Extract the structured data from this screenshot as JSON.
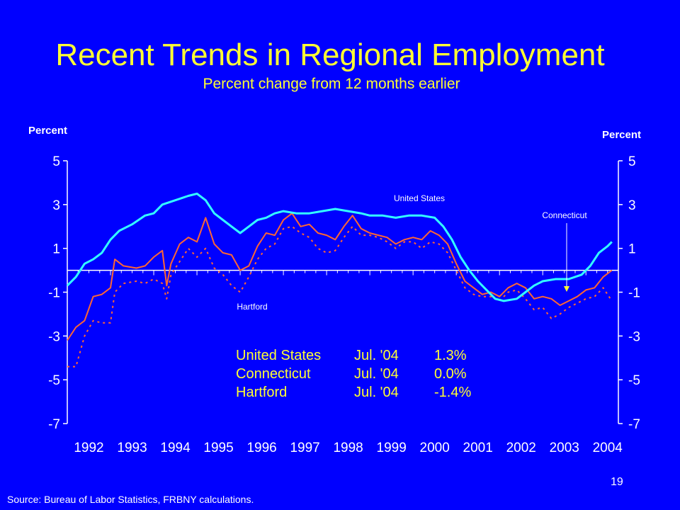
{
  "slide": {
    "title": "Recent Trends in Regional Employment",
    "subtitle": "Percent change from 12 months earlier",
    "page_number": "19",
    "source": "Source: Bureau of Labor Statistics, FRBNY calculations."
  },
  "colors": {
    "background": "#0000ff",
    "title": "#ffff33",
    "us": "#33ffff",
    "connecticut": "#ff6633",
    "hartford": "#ff6633",
    "axis": "#ffffff"
  },
  "chart_data": {
    "type": "line",
    "left_axis_title": "Percent",
    "right_axis_title": "Percent",
    "y_ticks": [
      "5",
      "3",
      "1",
      "-1",
      "-3",
      "-5",
      "-7"
    ],
    "y_tick_values": [
      5,
      3,
      1,
      -1,
      -3,
      -5,
      -7
    ],
    "x_ticks": [
      "1992",
      "1993",
      "1994",
      "1995",
      "1996",
      "1997",
      "1998",
      "1999",
      "2000",
      "2001",
      "2002",
      "2003",
      "2004"
    ],
    "ylim": [
      -7,
      5
    ],
    "xlim": [
      1992.0,
      2004.75
    ],
    "grid": false,
    "annotations": [
      {
        "text": "United States",
        "series": "United States"
      },
      {
        "text": "Connecticut",
        "series": "Connecticut",
        "arrow": true
      },
      {
        "text": "Hartford",
        "series": "Hartford"
      }
    ],
    "table": [
      {
        "name": "United States",
        "date": "Jul. '04",
        "value": "1.3%"
      },
      {
        "name": "Connecticut",
        "date": "Jul. '04",
        "value": "0.0%"
      },
      {
        "name": "Hartford",
        "date": "Jul. '04",
        "value": "-1.4%"
      }
    ],
    "series": [
      {
        "name": "United States",
        "style": "solid",
        "points": [
          [
            1992.0,
            -0.7
          ],
          [
            1992.2,
            -0.3
          ],
          [
            1992.4,
            0.3
          ],
          [
            1992.6,
            0.5
          ],
          [
            1992.8,
            0.8
          ],
          [
            1993.0,
            1.4
          ],
          [
            1993.2,
            1.8
          ],
          [
            1993.5,
            2.1
          ],
          [
            1993.8,
            2.5
          ],
          [
            1994.0,
            2.6
          ],
          [
            1994.2,
            3.0
          ],
          [
            1994.5,
            3.2
          ],
          [
            1994.8,
            3.4
          ],
          [
            1995.0,
            3.5
          ],
          [
            1995.2,
            3.2
          ],
          [
            1995.4,
            2.6
          ],
          [
            1995.6,
            2.3
          ],
          [
            1995.8,
            2.0
          ],
          [
            1996.0,
            1.7
          ],
          [
            1996.2,
            2.0
          ],
          [
            1996.4,
            2.3
          ],
          [
            1996.6,
            2.4
          ],
          [
            1996.8,
            2.6
          ],
          [
            1997.0,
            2.7
          ],
          [
            1997.3,
            2.6
          ],
          [
            1997.6,
            2.6
          ],
          [
            1997.9,
            2.7
          ],
          [
            1998.2,
            2.8
          ],
          [
            1998.5,
            2.7
          ],
          [
            1998.8,
            2.6
          ],
          [
            1999.0,
            2.5
          ],
          [
            1999.3,
            2.5
          ],
          [
            1999.6,
            2.4
          ],
          [
            1999.9,
            2.5
          ],
          [
            2000.2,
            2.5
          ],
          [
            2000.5,
            2.4
          ],
          [
            2000.7,
            2.0
          ],
          [
            2000.9,
            1.4
          ],
          [
            2001.1,
            0.6
          ],
          [
            2001.3,
            0.0
          ],
          [
            2001.5,
            -0.5
          ],
          [
            2001.7,
            -0.9
          ],
          [
            2001.9,
            -1.3
          ],
          [
            2002.1,
            -1.4
          ],
          [
            2002.4,
            -1.3
          ],
          [
            2002.6,
            -1.0
          ],
          [
            2002.8,
            -0.7
          ],
          [
            2003.0,
            -0.5
          ],
          [
            2003.3,
            -0.4
          ],
          [
            2003.6,
            -0.4
          ],
          [
            2003.9,
            -0.2
          ],
          [
            2004.1,
            0.2
          ],
          [
            2004.3,
            0.8
          ],
          [
            2004.5,
            1.1
          ],
          [
            2004.6,
            1.3
          ]
        ]
      },
      {
        "name": "Connecticut",
        "style": "solid",
        "points": [
          [
            1992.0,
            -3.2
          ],
          [
            1992.2,
            -2.6
          ],
          [
            1992.4,
            -2.3
          ],
          [
            1992.6,
            -1.2
          ],
          [
            1992.8,
            -1.1
          ],
          [
            1993.0,
            -0.8
          ],
          [
            1993.1,
            0.5
          ],
          [
            1993.3,
            0.2
          ],
          [
            1993.6,
            0.1
          ],
          [
            1993.8,
            0.2
          ],
          [
            1994.0,
            0.6
          ],
          [
            1994.2,
            0.9
          ],
          [
            1994.3,
            -0.7
          ],
          [
            1994.4,
            0.3
          ],
          [
            1994.6,
            1.2
          ],
          [
            1994.8,
            1.5
          ],
          [
            1995.0,
            1.3
          ],
          [
            1995.2,
            2.4
          ],
          [
            1995.4,
            1.2
          ],
          [
            1995.6,
            0.8
          ],
          [
            1995.8,
            0.7
          ],
          [
            1996.0,
            0.0
          ],
          [
            1996.2,
            0.2
          ],
          [
            1996.4,
            1.1
          ],
          [
            1996.6,
            1.7
          ],
          [
            1996.8,
            1.6
          ],
          [
            1997.0,
            2.3
          ],
          [
            1997.2,
            2.6
          ],
          [
            1997.4,
            2.0
          ],
          [
            1997.6,
            2.1
          ],
          [
            1997.8,
            1.7
          ],
          [
            1998.0,
            1.6
          ],
          [
            1998.2,
            1.4
          ],
          [
            1998.4,
            2.0
          ],
          [
            1998.6,
            2.5
          ],
          [
            1998.8,
            1.9
          ],
          [
            1999.0,
            1.7
          ],
          [
            1999.2,
            1.6
          ],
          [
            1999.4,
            1.5
          ],
          [
            1999.6,
            1.2
          ],
          [
            1999.8,
            1.4
          ],
          [
            2000.0,
            1.5
          ],
          [
            2000.2,
            1.4
          ],
          [
            2000.4,
            1.8
          ],
          [
            2000.6,
            1.6
          ],
          [
            2000.8,
            1.2
          ],
          [
            2001.0,
            0.3
          ],
          [
            2001.2,
            -0.5
          ],
          [
            2001.4,
            -0.8
          ],
          [
            2001.6,
            -1.1
          ],
          [
            2001.8,
            -1.0
          ],
          [
            2002.0,
            -1.2
          ],
          [
            2002.2,
            -0.8
          ],
          [
            2002.4,
            -0.6
          ],
          [
            2002.6,
            -0.8
          ],
          [
            2002.8,
            -1.3
          ],
          [
            2003.0,
            -1.2
          ],
          [
            2003.2,
            -1.3
          ],
          [
            2003.4,
            -1.6
          ],
          [
            2003.6,
            -1.4
          ],
          [
            2003.8,
            -1.2
          ],
          [
            2004.0,
            -0.9
          ],
          [
            2004.2,
            -0.8
          ],
          [
            2004.4,
            -0.3
          ],
          [
            2004.6,
            0.0
          ]
        ]
      },
      {
        "name": "Hartford",
        "style": "dashed",
        "points": [
          [
            1992.0,
            -4.4
          ],
          [
            1992.2,
            -4.4
          ],
          [
            1992.4,
            -3.0
          ],
          [
            1992.6,
            -2.3
          ],
          [
            1992.8,
            -2.4
          ],
          [
            1993.0,
            -2.4
          ],
          [
            1993.1,
            -1.0
          ],
          [
            1993.3,
            -0.6
          ],
          [
            1993.6,
            -0.5
          ],
          [
            1993.8,
            -0.6
          ],
          [
            1994.0,
            -0.4
          ],
          [
            1994.2,
            -0.6
          ],
          [
            1994.3,
            -1.3
          ],
          [
            1994.4,
            -0.2
          ],
          [
            1994.6,
            0.4
          ],
          [
            1994.8,
            1.0
          ],
          [
            1995.0,
            0.6
          ],
          [
            1995.2,
            1.0
          ],
          [
            1995.4,
            0.1
          ],
          [
            1995.6,
            -0.2
          ],
          [
            1995.8,
            -0.7
          ],
          [
            1996.0,
            -1.0
          ],
          [
            1996.2,
            -0.3
          ],
          [
            1996.4,
            0.5
          ],
          [
            1996.6,
            1.0
          ],
          [
            1996.8,
            1.2
          ],
          [
            1997.0,
            1.9
          ],
          [
            1997.2,
            2.0
          ],
          [
            1997.4,
            1.7
          ],
          [
            1997.6,
            1.5
          ],
          [
            1997.8,
            1.0
          ],
          [
            1998.0,
            0.8
          ],
          [
            1998.2,
            0.9
          ],
          [
            1998.4,
            1.5
          ],
          [
            1998.6,
            2.0
          ],
          [
            1998.8,
            1.6
          ],
          [
            1999.0,
            1.6
          ],
          [
            1999.2,
            1.5
          ],
          [
            1999.4,
            1.3
          ],
          [
            1999.6,
            1.0
          ],
          [
            1999.8,
            1.3
          ],
          [
            2000.0,
            1.3
          ],
          [
            2000.2,
            1.0
          ],
          [
            2000.4,
            1.3
          ],
          [
            2000.6,
            1.2
          ],
          [
            2000.8,
            0.8
          ],
          [
            2001.0,
            0.0
          ],
          [
            2001.2,
            -0.8
          ],
          [
            2001.4,
            -1.1
          ],
          [
            2001.6,
            -1.2
          ],
          [
            2001.8,
            -1.2
          ],
          [
            2002.0,
            -1.4
          ],
          [
            2002.2,
            -1.0
          ],
          [
            2002.4,
            -0.9
          ],
          [
            2002.6,
            -1.3
          ],
          [
            2002.8,
            -1.8
          ],
          [
            2003.0,
            -1.7
          ],
          [
            2003.2,
            -2.2
          ],
          [
            2003.4,
            -2.0
          ],
          [
            2003.6,
            -1.7
          ],
          [
            2003.8,
            -1.5
          ],
          [
            2004.0,
            -1.3
          ],
          [
            2004.2,
            -1.2
          ],
          [
            2004.4,
            -0.8
          ],
          [
            2004.6,
            -1.4
          ]
        ]
      }
    ]
  }
}
